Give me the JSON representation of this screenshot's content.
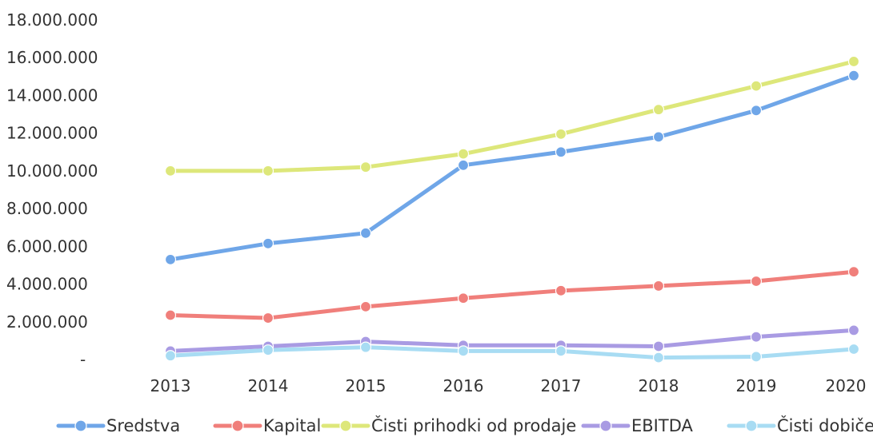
{
  "chart_data": {
    "type": "line",
    "categories": [
      "2013",
      "2014",
      "2015",
      "2016",
      "2017",
      "2018",
      "2019",
      "2020"
    ],
    "y_ticks": [
      "-",
      "2.000.000",
      "4.000.000",
      "6.000.000",
      "8.000.000",
      "10.000.000",
      "12.000.000",
      "14.000.000",
      "16.000.000",
      "18.000.000"
    ],
    "ylim": [
      0,
      18000000
    ],
    "grid": false,
    "legend_position": "bottom",
    "series": [
      {
        "name": "Sredstva",
        "color": "#6fa6e8",
        "values": [
          5300000,
          6150000,
          6700000,
          10300000,
          11000000,
          11800000,
          13200000,
          15050000
        ]
      },
      {
        "name": "Kapital",
        "color": "#f07f7b",
        "values": [
          2350000,
          2200000,
          2800000,
          3250000,
          3650000,
          3900000,
          4150000,
          4650000
        ]
      },
      {
        "name": "Čisti prihodki od prodaje",
        "color": "#dde77a",
        "values": [
          10000000,
          10000000,
          10200000,
          10900000,
          11950000,
          13250000,
          14500000,
          15800000
        ]
      },
      {
        "name": "EBITDA",
        "color": "#a99be3",
        "values": [
          450000,
          700000,
          950000,
          750000,
          750000,
          700000,
          1200000,
          1550000
        ]
      },
      {
        "name": "Čisti dobiček",
        "color": "#a8dcf3",
        "values": [
          200000,
          500000,
          650000,
          450000,
          450000,
          100000,
          150000,
          550000
        ]
      }
    ]
  }
}
